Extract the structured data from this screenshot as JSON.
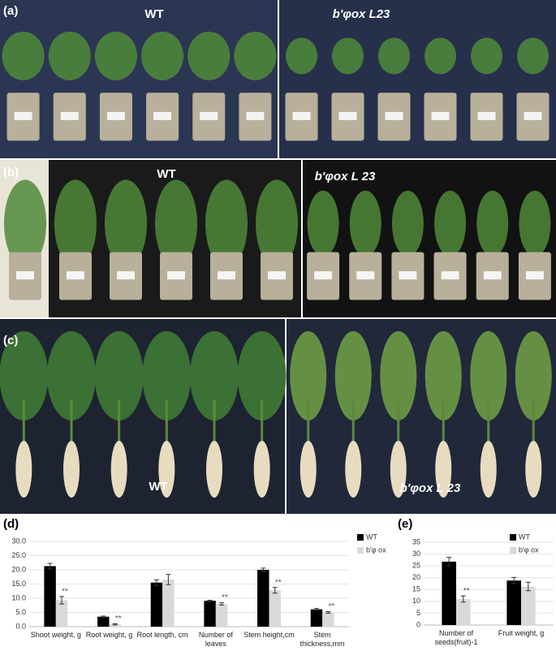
{
  "photo_panels": [
    {
      "label": "(a)",
      "left_title": "WT",
      "right_title": "b'φox L23"
    },
    {
      "label": "(b)",
      "left_title": "WT",
      "right_title": "b'φox L 23"
    },
    {
      "label": "(c)",
      "left_title": "WT",
      "right_title": "b'φox L 23"
    }
  ],
  "chart_data": [
    {
      "type": "bar",
      "panel_label": "(d)",
      "categories": [
        "Shoot weight, g",
        "Root weight, g",
        "Root length, cm",
        "Number of leaves",
        "Stem height,cm",
        "Stem thickness,mm"
      ],
      "series": [
        {
          "name": "WT",
          "color": "#000000",
          "values": [
            21.3,
            3.5,
            15.5,
            9.1,
            20.0,
            6.1
          ],
          "errors": [
            1.0,
            0.2,
            1.0,
            0.2,
            0.6,
            0.3
          ]
        },
        {
          "name": "b'φ ox",
          "color": "#d9d9d9",
          "values": [
            9.3,
            0.8,
            16.6,
            8.0,
            12.8,
            5.0
          ],
          "errors": [
            1.3,
            0.2,
            1.8,
            0.4,
            1.0,
            0.3
          ],
          "significance_labels": [
            "**",
            "**",
            null,
            "**",
            "**",
            "**"
          ]
        }
      ],
      "ylim": [
        0,
        30
      ],
      "yticks": [
        {
          "value": 0,
          "label": "0.0"
        },
        {
          "value": 5,
          "label": "5.0"
        },
        {
          "value": 10,
          "label": "10.0"
        },
        {
          "value": 15,
          "label": "15.0"
        },
        {
          "value": 20,
          "label": "20.0"
        },
        {
          "value": 25,
          "label": "25.0"
        },
        {
          "value": 30,
          "label": "30.0"
        }
      ],
      "legend": "top-right"
    },
    {
      "type": "bar",
      "panel_label": "(e)",
      "categories": [
        "Number of seeds(fruit)-1",
        "Fruit weight, g"
      ],
      "series": [
        {
          "name": "WT",
          "color": "#000000",
          "values": [
            26.8,
            18.8
          ],
          "errors": [
            1.8,
            1.3
          ]
        },
        {
          "name": "b'φ ox",
          "color": "#d9d9d9",
          "values": [
            11.0,
            16.3
          ],
          "errors": [
            1.3,
            1.8
          ],
          "significance_labels": [
            "**",
            null
          ]
        }
      ],
      "ylim": [
        0,
        35
      ],
      "yticks": [
        0,
        5,
        10,
        15,
        20,
        25,
        30,
        35
      ],
      "legend": "top-right"
    }
  ]
}
